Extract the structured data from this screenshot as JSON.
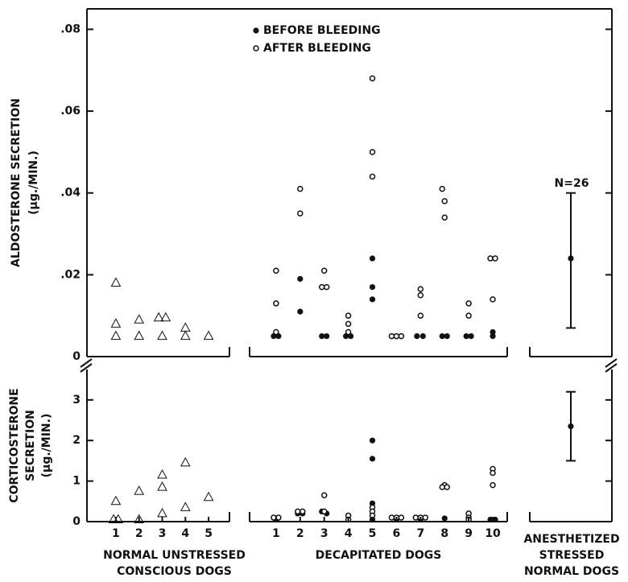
{
  "chart_data": [
    {
      "type": "scatter",
      "ylabel": [
        "ALDOSTERONE SECRETION",
        "(μg./MIN.)"
      ],
      "ylim": [
        0,
        0.085
      ],
      "yticks": [
        {
          "value": 0,
          "label": "0"
        },
        {
          "value": 0.02,
          "label": ".02"
        },
        {
          "value": 0.04,
          "label": ".04"
        },
        {
          "value": 0.06,
          "label": ".06"
        },
        {
          "value": 0.08,
          "label": ".08"
        }
      ],
      "annotation": "N=26",
      "series": [
        {
          "group": 0,
          "marker": "triangle",
          "x": [
            1,
            1,
            1,
            2,
            2,
            2.85,
            3.15,
            3,
            4,
            4,
            5
          ],
          "y": [
            0.018,
            0.008,
            0.005,
            0.009,
            0.005,
            0.0095,
            0.0095,
            0.005,
            0.007,
            0.005,
            0.005
          ]
        },
        {
          "name": "BEFORE BLEEDING",
          "group": 1,
          "marker": "filled",
          "x": [
            0.9,
            1.1,
            2,
            2,
            2.9,
            3.1,
            3.9,
            4.1,
            5,
            5,
            5,
            6.85,
            7.1,
            7.9,
            8.1,
            8.9,
            9.1,
            10,
            10
          ],
          "y": [
            0.005,
            0.005,
            0.019,
            0.011,
            0.005,
            0.005,
            0.005,
            0.005,
            0.024,
            0.017,
            0.014,
            0.005,
            0.005,
            0.005,
            0.005,
            0.005,
            0.005,
            0.006,
            0.005
          ]
        },
        {
          "name": "AFTER BLEEDING",
          "group": 1,
          "marker": "open",
          "x": [
            1,
            1,
            1,
            2,
            2,
            3,
            2.9,
            3.1,
            4,
            4,
            4,
            5,
            5,
            5,
            5.8,
            6,
            6.2,
            7,
            7,
            7,
            7.9,
            8,
            8,
            9,
            9,
            9.9,
            10.1,
            10
          ],
          "y": [
            0.021,
            0.013,
            0.006,
            0.041,
            0.035,
            0.021,
            0.017,
            0.017,
            0.01,
            0.008,
            0.006,
            0.068,
            0.05,
            0.044,
            0.005,
            0.005,
            0.005,
            0.0165,
            0.015,
            0.01,
            0.041,
            0.038,
            0.034,
            0.013,
            0.01,
            0.024,
            0.024,
            0.014
          ]
        },
        {
          "group": 2,
          "marker": "errorbar",
          "x": [
            1
          ],
          "y": [
            0.024
          ],
          "lower": [
            0.007
          ],
          "upper": [
            0.04
          ]
        }
      ]
    },
    {
      "type": "scatter",
      "ylabel": [
        "CORTICOSTERONE",
        "SECRETION",
        "(μg./MIN.)"
      ],
      "ylim": [
        0,
        3.75
      ],
      "yticks": [
        0,
        1,
        2,
        3
      ],
      "series": [
        {
          "group": 0,
          "marker": "triangle",
          "x": [
            1,
            0.9,
            1.1,
            2,
            2,
            3,
            3,
            3,
            4,
            4,
            5
          ],
          "y": [
            0.5,
            0.05,
            0.05,
            0.75,
            0.05,
            1.15,
            0.85,
            0.2,
            1.45,
            0.35,
            0.6
          ]
        },
        {
          "name": "BEFORE BLEEDING",
          "group": 1,
          "marker": "filled",
          "x": [
            1,
            1.9,
            2.1,
            2.9,
            3.1,
            4,
            5,
            5,
            5,
            5,
            6,
            7,
            8,
            9,
            9.9,
            10.1
          ],
          "y": [
            0.05,
            0.2,
            0.2,
            0.25,
            0.2,
            0.05,
            2.0,
            1.55,
            0.45,
            0.05,
            0.05,
            0.05,
            0.08,
            0.05,
            0.05,
            0.05
          ]
        },
        {
          "name": "AFTER BLEEDING",
          "group": 1,
          "marker": "open",
          "x": [
            0.9,
            1.1,
            1.9,
            2.1,
            3,
            3,
            4,
            4,
            5,
            5,
            5,
            5.8,
            6,
            6.2,
            6.8,
            7,
            7.2,
            8,
            7.9,
            8.1,
            9,
            9,
            9,
            10,
            10,
            10
          ],
          "y": [
            0.1,
            0.1,
            0.25,
            0.25,
            0.65,
            0.25,
            0.15,
            0.05,
            0.35,
            0.25,
            0.15,
            0.1,
            0.1,
            0.1,
            0.1,
            0.1,
            0.1,
            0.9,
            0.85,
            0.85,
            0.2,
            0.1,
            0.05,
            1.3,
            1.2,
            0.9
          ]
        },
        {
          "group": 2,
          "marker": "errorbar",
          "x": [
            1
          ],
          "y": [
            2.35
          ],
          "lower": [
            1.5
          ],
          "upper": [
            3.2
          ]
        }
      ]
    }
  ],
  "x_axes": [
    {
      "label": [
        "NORMAL UNSTRESSED",
        "CONSCIOUS DOGS"
      ],
      "xlim": [
        0.1,
        5.9
      ],
      "xticks": [
        1,
        2,
        3,
        4,
        5
      ]
    },
    {
      "label": [
        "DECAPITATED DOGS"
      ],
      "xlim": [
        -0.1,
        10.6
      ],
      "xticks": [
        1,
        2,
        3,
        4,
        5,
        6,
        7,
        8,
        9,
        10
      ]
    },
    {
      "label": [
        "ANESTHETIZED",
        "STRESSED",
        "NORMAL DOGS"
      ],
      "xlim": [
        0,
        2
      ],
      "xticks": []
    }
  ]
}
